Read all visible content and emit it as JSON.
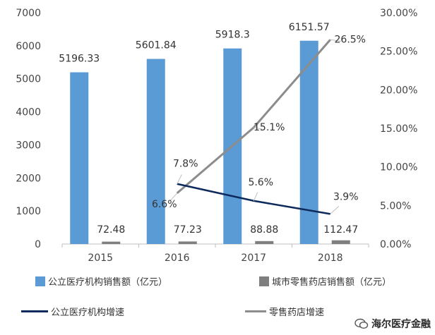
{
  "chart_data": {
    "type": "bar",
    "categories": [
      "2015",
      "2016",
      "2017",
      "2018"
    ],
    "series": [
      {
        "name": "公立医疗机构销售额（亿元）",
        "kind": "bar",
        "axis": "left",
        "color": "#5b9bd5",
        "values": [
          5196.33,
          5601.84,
          5918.3,
          6151.57
        ],
        "labels": [
          "5196.33",
          "5601.84",
          "5918.3",
          "6151.57"
        ]
      },
      {
        "name": "城市零售药店销售额（亿元）",
        "kind": "bar",
        "axis": "left",
        "color": "#7f7f7f",
        "values": [
          72.48,
          77.23,
          88.88,
          112.47
        ],
        "labels": [
          "72.48",
          "77.23",
          "88.88",
          "112.47"
        ]
      },
      {
        "name": "公立医疗机构增速",
        "kind": "line",
        "axis": "right",
        "color": "#0d2a5c",
        "values": [
          null,
          0.078,
          0.056,
          0.039
        ],
        "labels": [
          "",
          "7.8%",
          "5.6%",
          "3.9%"
        ]
      },
      {
        "name": "零售药店增速",
        "kind": "line",
        "axis": "right",
        "color": "#8c8c8c",
        "values": [
          null,
          0.066,
          0.151,
          0.265
        ],
        "labels": [
          "",
          "6.6%",
          "15.1%",
          "26.5%"
        ]
      }
    ],
    "ylim": [
      0,
      7000
    ],
    "yticks": [
      "0",
      "1000",
      "2000",
      "3000",
      "4000",
      "5000",
      "6000",
      "7000"
    ],
    "y2lim": [
      0,
      0.3
    ],
    "y2ticks": [
      "0.00%",
      "5.00%",
      "10.00%",
      "15.00%",
      "20.00%",
      "25.00%",
      "30.00%"
    ],
    "grid": false,
    "legend_position": "bottom"
  },
  "watermark": {
    "text": "海尔医疗金融"
  }
}
